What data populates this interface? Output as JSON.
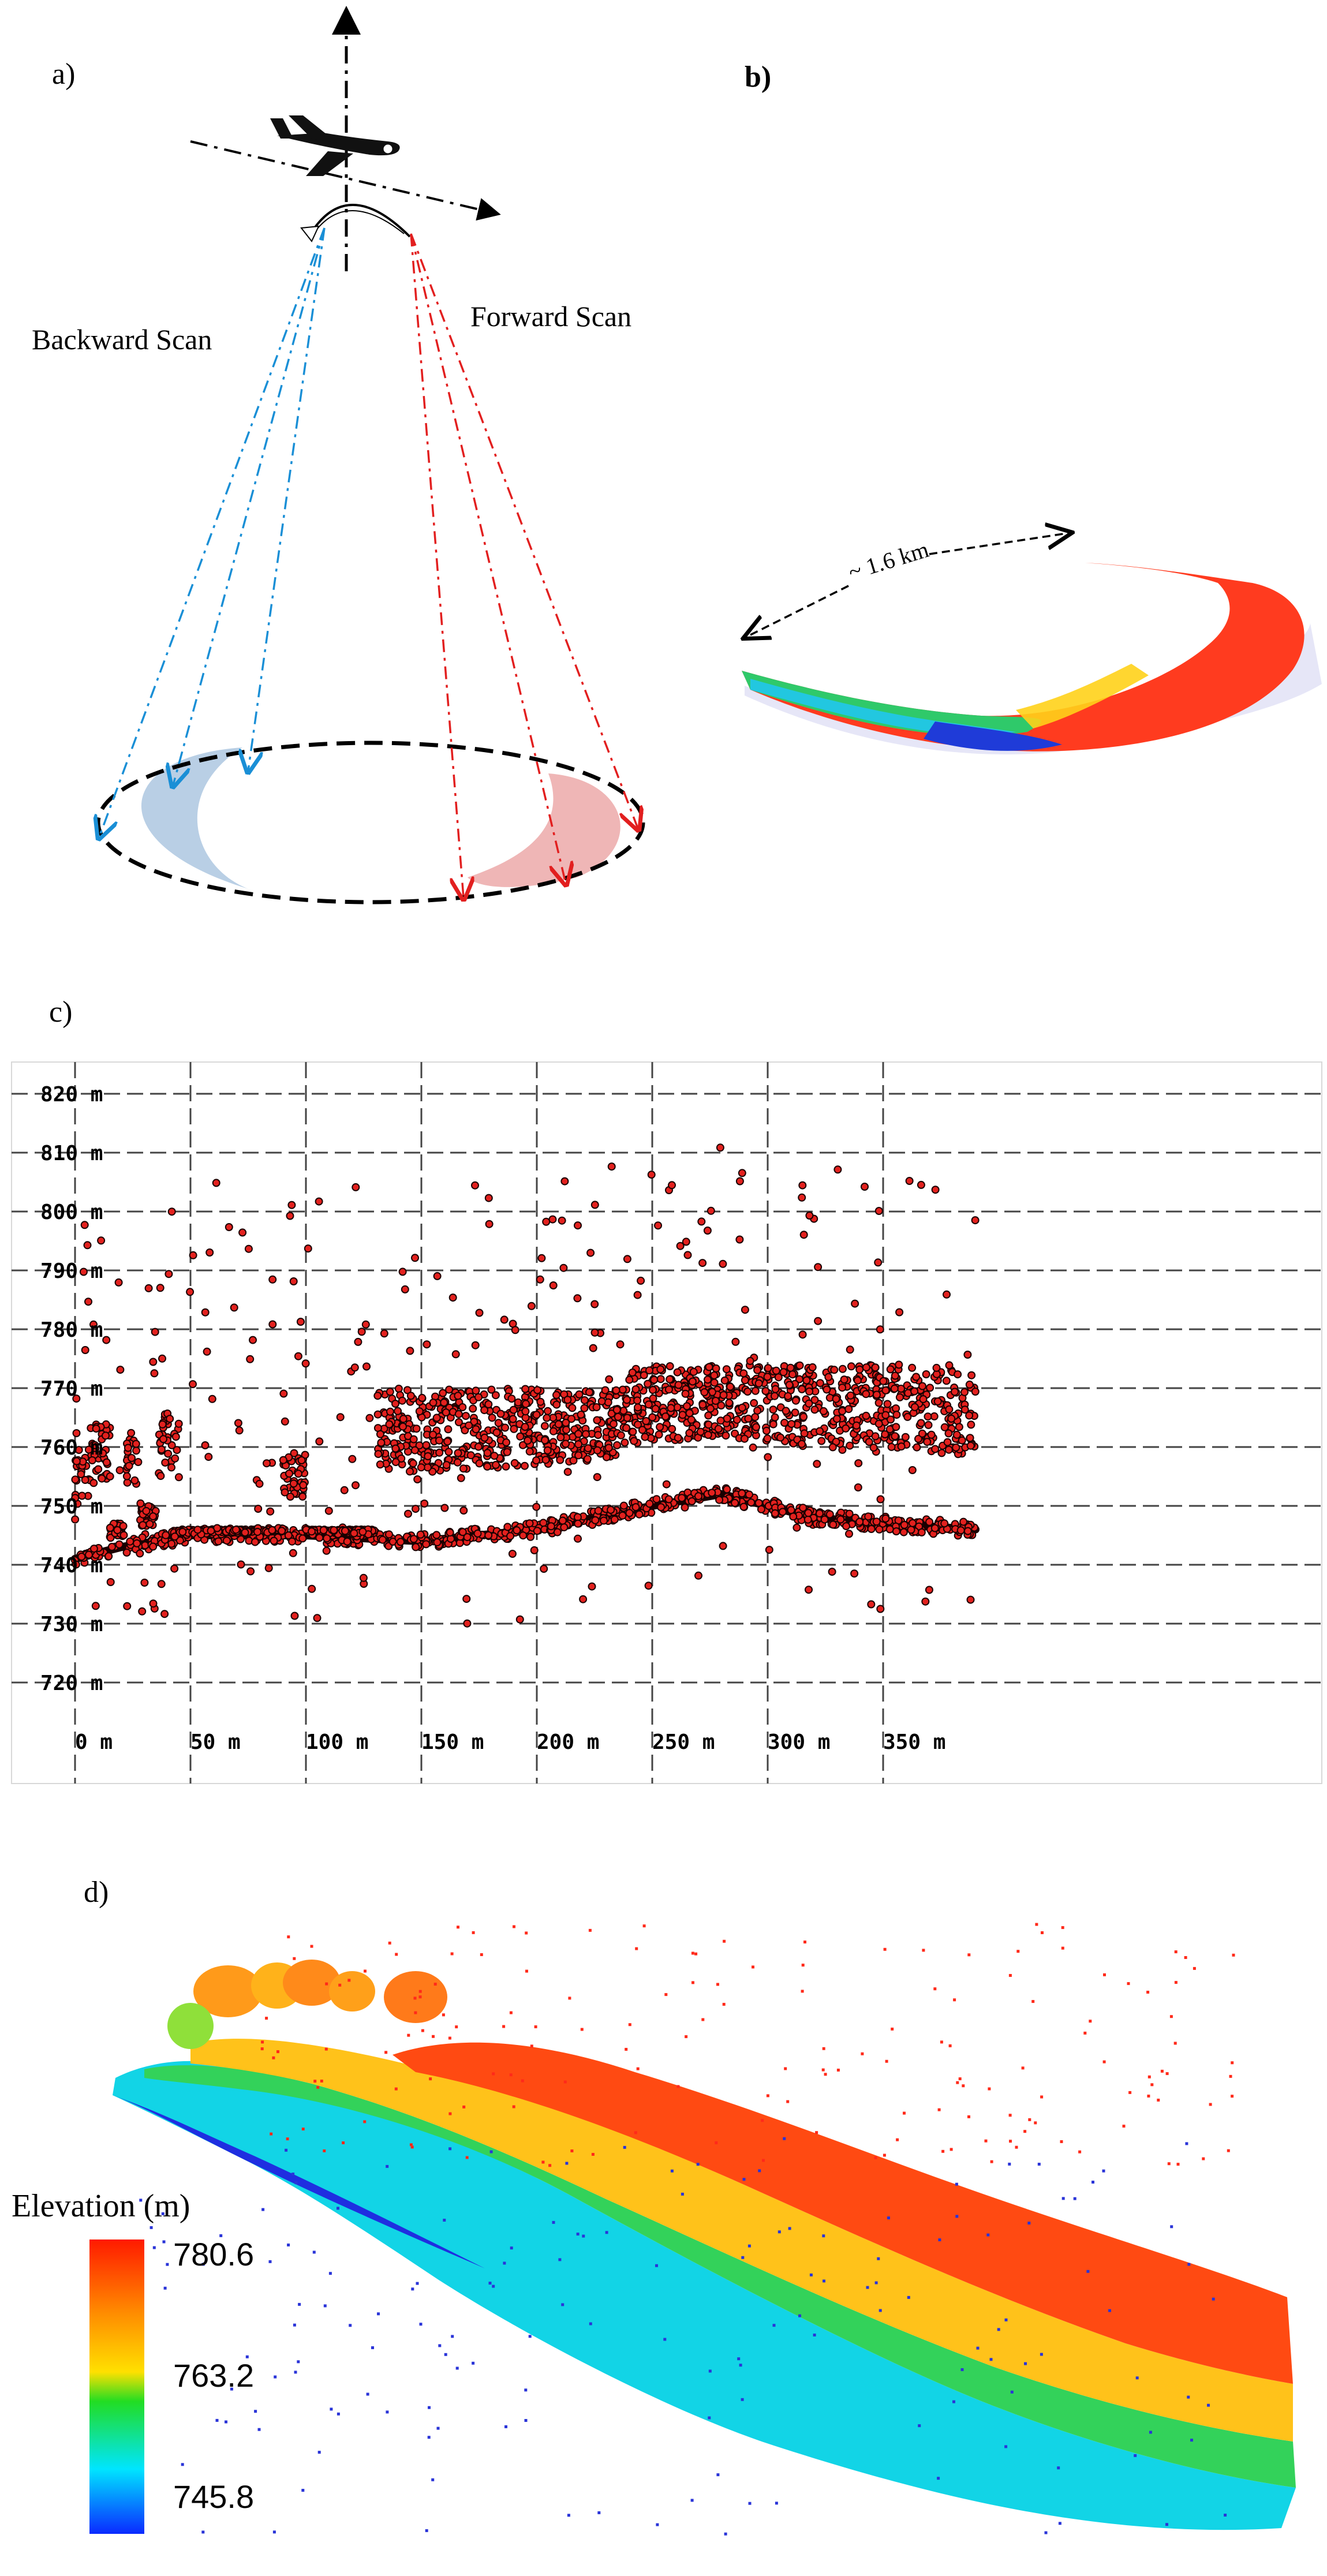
{
  "panel_a": {
    "label": "a)",
    "backward_scan_label": "Backward Scan",
    "forward_scan_label": "Forward Scan",
    "backward_color": "#1a8fd6",
    "forward_color": "#e21f1f",
    "backward_fill": "#b9cfe5",
    "forward_fill": "#efb6b6"
  },
  "panel_b": {
    "label": "b)",
    "distance_label": "~ 1.6 km"
  },
  "panel_c": {
    "label": "c)",
    "point_color": "#e3211e",
    "point_edge": "#1a0000",
    "x_ticks": [
      "0 m",
      "50 m",
      "100 m",
      "150 m",
      "200 m",
      "250 m",
      "300 m",
      "350 m"
    ],
    "y_ticks": [
      "820 m",
      "810 m",
      "800 m",
      "790 m",
      "780 m",
      "770 m",
      "760 m",
      "750 m",
      "740 m",
      "730 m",
      "720 m"
    ],
    "ground_profile": [
      [
        0,
        741
      ],
      [
        20,
        743
      ],
      [
        50,
        745
      ],
      [
        100,
        745
      ],
      [
        150,
        744
      ],
      [
        200,
        746
      ],
      [
        250,
        750
      ],
      [
        280,
        752
      ],
      [
        320,
        748
      ],
      [
        350,
        747
      ],
      [
        390,
        746
      ]
    ]
  },
  "panel_d": {
    "label": "d)",
    "colorbar_title": "Elevation (m)",
    "colorbar_max": "780.6",
    "colorbar_mid": "763.2",
    "colorbar_min": "745.8",
    "colorbar_colors": [
      "#ff1a00",
      "#ff8c00",
      "#ffe000",
      "#22dd22",
      "#00e5ff",
      "#0a2aff"
    ]
  }
}
